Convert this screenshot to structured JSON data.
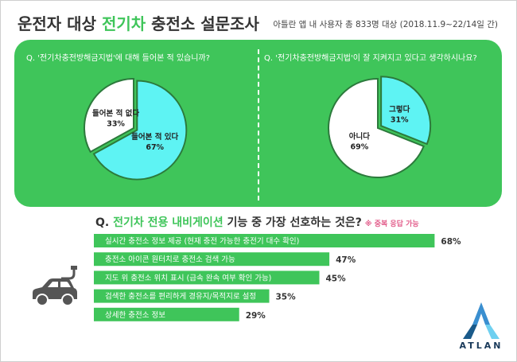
{
  "header": {
    "title_pre": "운전자 대상 ",
    "title_highlight": "전기차",
    "title_post": " 충전소 설문조사",
    "subtitle": "아틀란 앱 내 사용자 총 833명 대상 (2018.11.9~22/14일 간)"
  },
  "colors": {
    "brand_green": "#3fc55a",
    "cyan": "#5ef3f3",
    "white": "#ffffff",
    "pink": "#e25c8a"
  },
  "chart_data": [
    {
      "type": "pie",
      "title": "Q. '전기차충전방해금지법'에 대해 들어본 적 있습니까?",
      "slices": [
        {
          "label": "들어본 적 있다",
          "value": 67,
          "display": "67%",
          "color": "#5ef3f3"
        },
        {
          "label": "들어본 적 없다",
          "value": 33,
          "display": "33%",
          "color": "#ffffff"
        }
      ]
    },
    {
      "type": "pie",
      "title": "Q. '전기차충전방해금지법'이 잘 지켜지고 있다고 생각하시나요?",
      "slices": [
        {
          "label": "그렇다",
          "value": 31,
          "display": "31%",
          "color": "#5ef3f3"
        },
        {
          "label": "아니다",
          "value": 69,
          "display": "69%",
          "color": "#ffffff"
        }
      ]
    },
    {
      "type": "bar",
      "orientation": "horizontal",
      "title_pre": "Q. ",
      "title_highlight": "전기차 전용 내비게이션",
      "title_post": " 기능 중 가장 선호하는 것은?",
      "note": "※ 중복 응답 가능",
      "xlim": [
        0,
        100
      ],
      "categories": [
        "실시간 충전소 정보 제공 (현재 충전 가능한 충전기 대수 확인)",
        "충전소 아이콘 원터치로 충전소 검색 가능",
        "지도 위 충전소 위치 표시 (급속 완속 여부 확인 가능)",
        "검색한 충전소를 편리하게 경유지/목적지로 설정",
        "상세한 충전소 정보"
      ],
      "values": [
        68,
        47,
        45,
        35,
        29
      ],
      "value_labels": [
        "68%",
        "47%",
        "45%",
        "35%",
        "29%"
      ],
      "color": "#3fc55a"
    }
  ],
  "brand": {
    "logo_icon": "atlan-logo-icon",
    "logo_text": "ATLAN"
  }
}
